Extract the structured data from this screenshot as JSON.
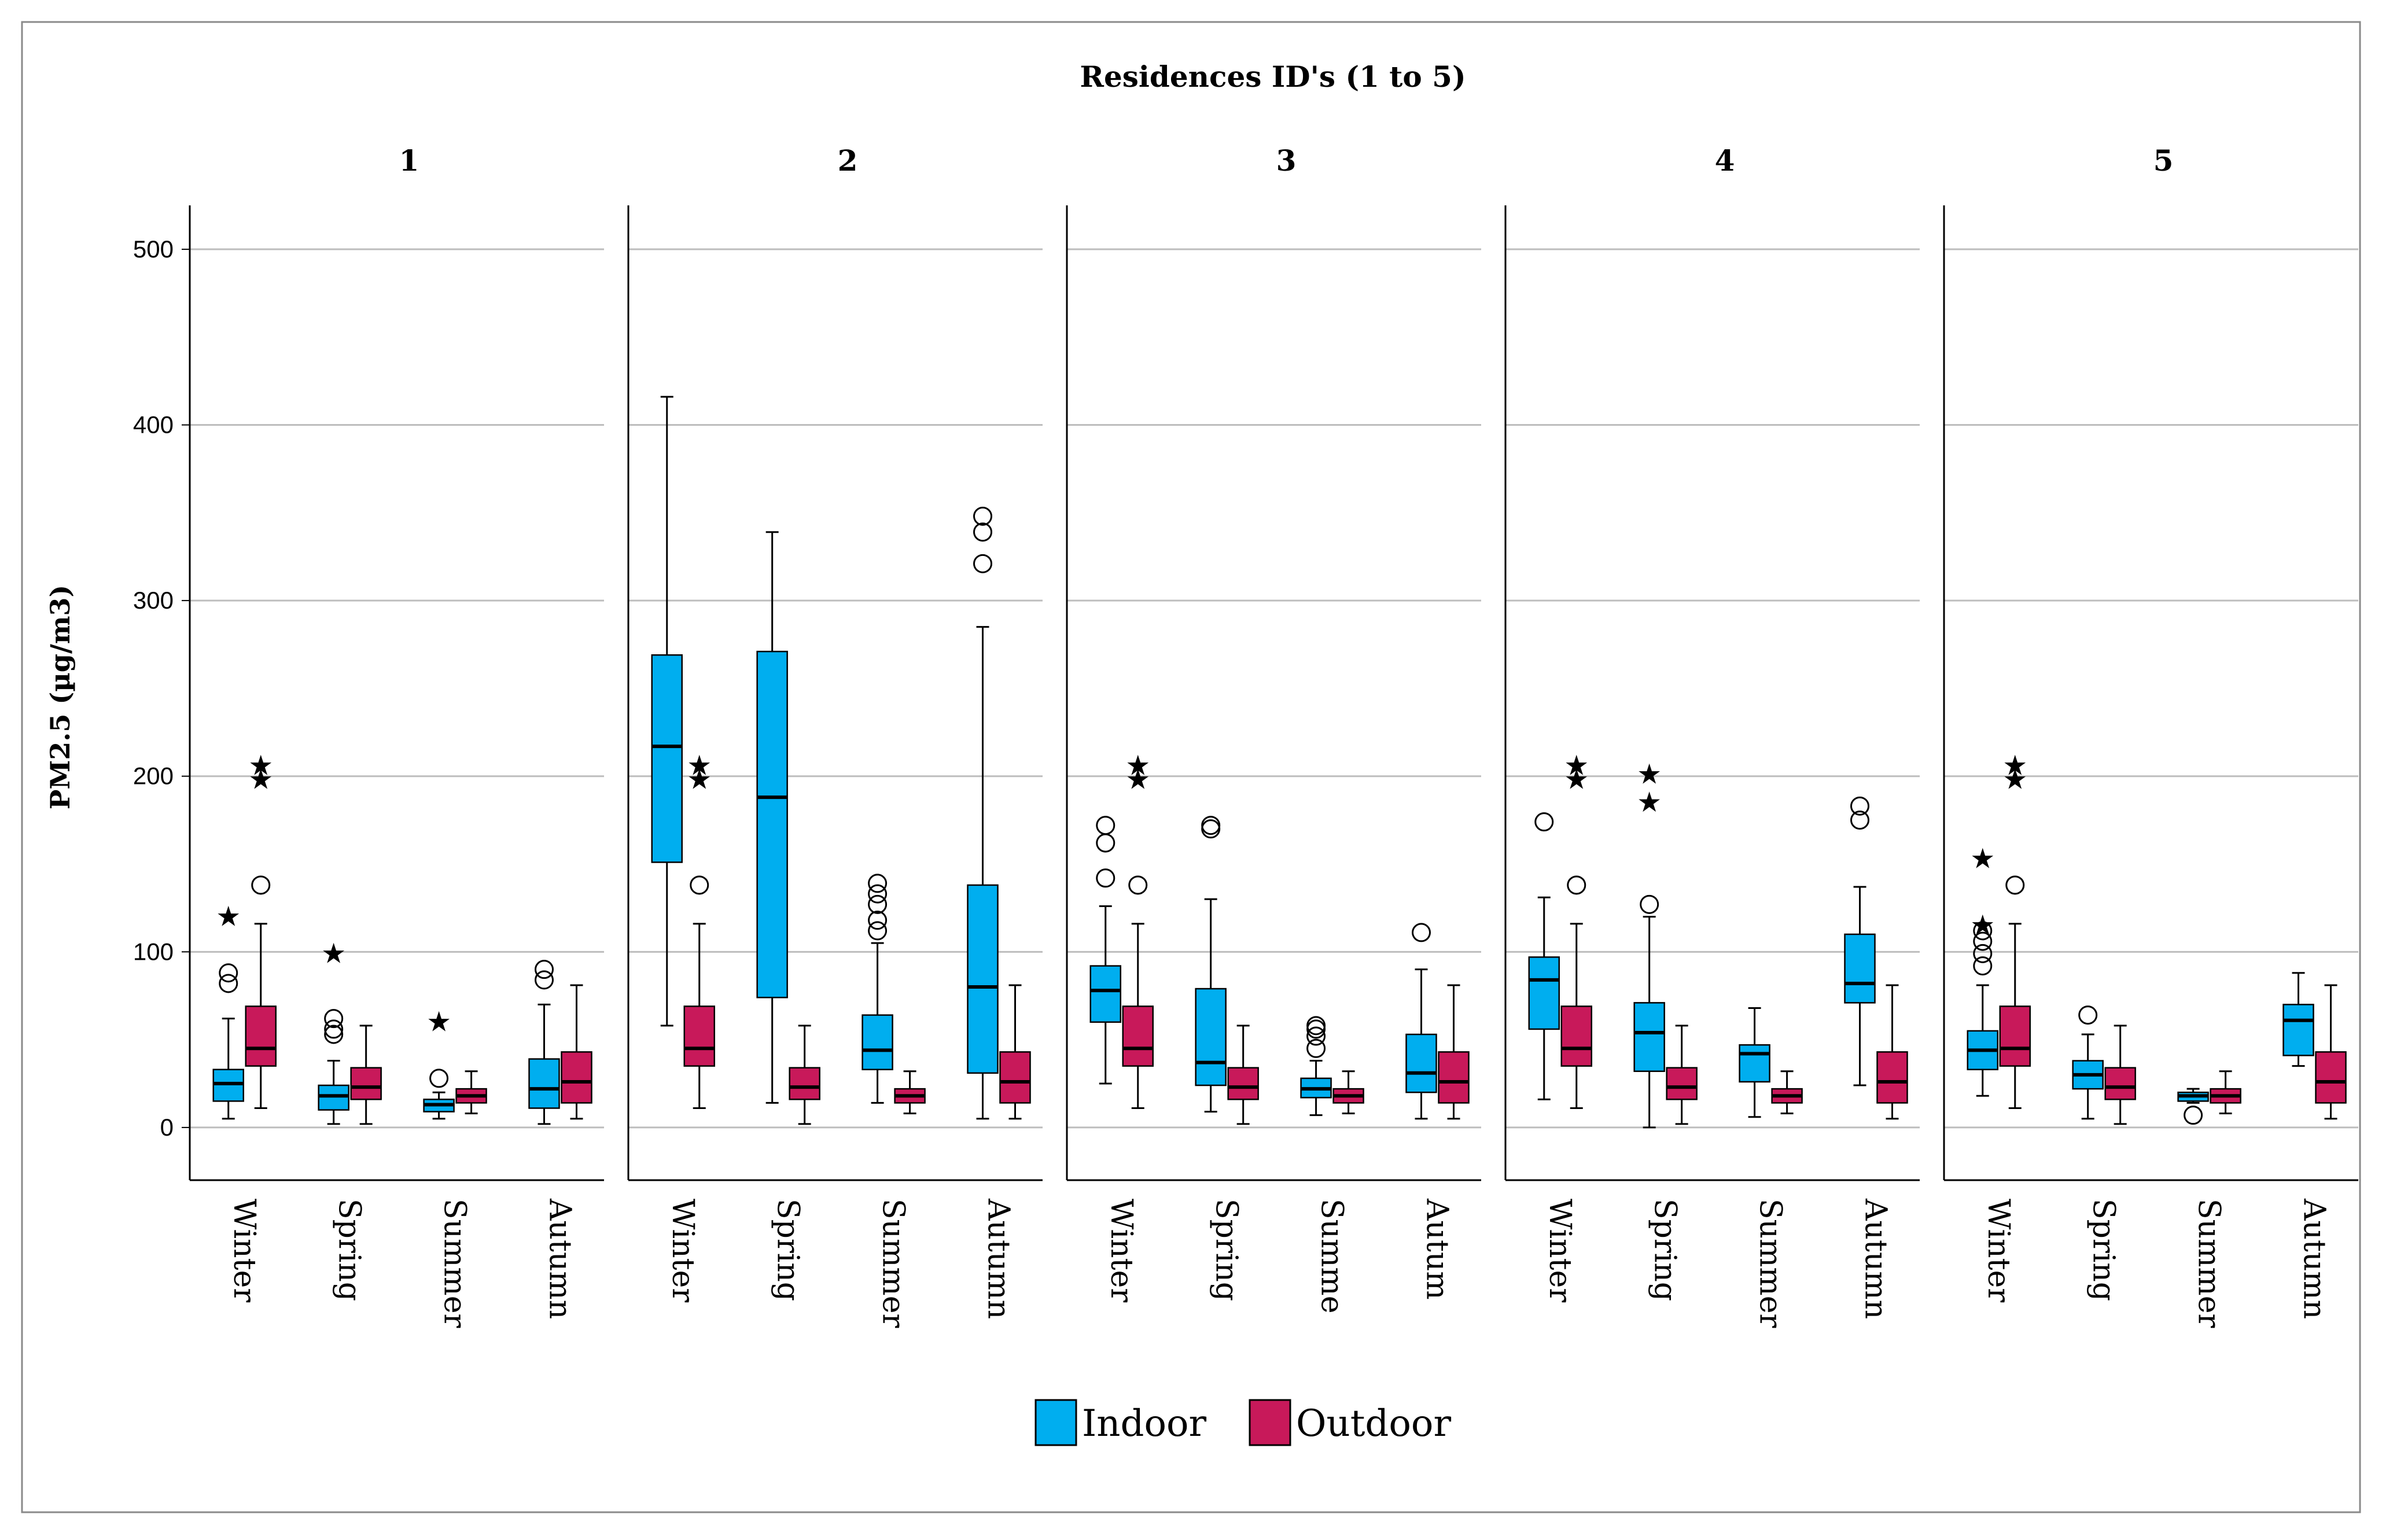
{
  "chart_data": {
    "type": "boxplot",
    "title": "Residences ID's (1 to 5)",
    "ylabel": "PM2.5 (µg/m3)",
    "xlabel": "",
    "ylim": [
      -30,
      525
    ],
    "yticks": [
      0,
      100,
      200,
      300,
      400,
      500
    ],
    "grid": true,
    "legend_position": "bottom",
    "categories": [
      "Winter",
      "Spring",
      "Summer",
      "Autumn"
    ],
    "category_labels": [
      [
        "Winter",
        "Spring",
        "Summer",
        "Autumn"
      ],
      [
        "Winter",
        "Spring",
        "Summer",
        "Autumn"
      ],
      [
        "Winter",
        "Spring",
        "Summe",
        "Autum"
      ],
      [
        "Winter",
        "Spring",
        "Summer",
        "Autumn"
      ],
      [
        "Winter",
        "Spring",
        "Summer",
        "Autumn"
      ]
    ],
    "series": [
      {
        "name": "Indoor",
        "color": "#00aeef"
      },
      {
        "name": "Outdoor",
        "color": "#c8195a"
      }
    ],
    "panels": [
      {
        "label": "1",
        "boxes": [
          [
            {
              "whislo": 5,
              "q1": 15,
              "med": 25,
              "q3": 33,
              "whishi": 62,
              "outliers": [
                82,
                88
              ],
              "extremes": [
                122
              ]
            },
            {
              "whislo": 11,
              "q1": 35,
              "med": 45,
              "q3": 69,
              "whishi": 116,
              "outliers": [
                138
              ],
              "extremes": [
                200,
                208
              ]
            }
          ],
          [
            {
              "whislo": 2,
              "q1": 10,
              "med": 18,
              "q3": 24,
              "whishi": 38,
              "outliers": [
                53,
                56,
                62
              ],
              "extremes": [
                101
              ]
            },
            {
              "whislo": 2,
              "q1": 16,
              "med": 23,
              "q3": 34,
              "whishi": 58,
              "outliers": [],
              "extremes": []
            }
          ],
          [
            {
              "whislo": 5,
              "q1": 9,
              "med": 13,
              "q3": 16,
              "whishi": 20,
              "outliers": [
                28
              ],
              "extremes": [
                62
              ]
            },
            {
              "whislo": 8,
              "q1": 14,
              "med": 18,
              "q3": 22,
              "whishi": 32,
              "outliers": [],
              "extremes": []
            }
          ],
          [
            {
              "whislo": 2,
              "q1": 11,
              "med": 22,
              "q3": 39,
              "whishi": 70,
              "outliers": [
                84,
                90
              ],
              "extremes": []
            },
            {
              "whislo": 5,
              "q1": 14,
              "med": 26,
              "q3": 43,
              "whishi": 81,
              "outliers": [],
              "extremes": []
            }
          ]
        ]
      },
      {
        "label": "2",
        "boxes": [
          [
            {
              "whislo": 58,
              "q1": 151,
              "med": 217,
              "q3": 269,
              "whishi": 416,
              "outliers": [],
              "extremes": []
            },
            {
              "whislo": 11,
              "q1": 35,
              "med": 45,
              "q3": 69,
              "whishi": 116,
              "outliers": [
                138
              ],
              "extremes": [
                200,
                208
              ]
            }
          ],
          [
            {
              "whislo": 14,
              "q1": 74,
              "med": 188,
              "q3": 271,
              "whishi": 339,
              "outliers": [],
              "extremes": []
            },
            {
              "whislo": 2,
              "q1": 16,
              "med": 23,
              "q3": 34,
              "whishi": 58,
              "outliers": [],
              "extremes": []
            }
          ],
          [
            {
              "whislo": 14,
              "q1": 33,
              "med": 44,
              "q3": 64,
              "whishi": 105,
              "outliers": [
                112,
                118,
                127,
                133,
                139
              ],
              "extremes": []
            },
            {
              "whislo": 8,
              "q1": 14,
              "med": 18,
              "q3": 22,
              "whishi": 32,
              "outliers": [],
              "extremes": []
            }
          ],
          [
            {
              "whislo": 5,
              "q1": 31,
              "med": 80,
              "q3": 138,
              "whishi": 285,
              "outliers": [
                321,
                339,
                348
              ],
              "extremes": []
            },
            {
              "whislo": 5,
              "q1": 14,
              "med": 26,
              "q3": 43,
              "whishi": 81,
              "outliers": [],
              "extremes": []
            }
          ]
        ]
      },
      {
        "label": "3",
        "boxes": [
          [
            {
              "whislo": 25,
              "q1": 60,
              "med": 78,
              "q3": 92,
              "whishi": 126,
              "outliers": [
                142,
                162,
                172
              ],
              "extremes": []
            },
            {
              "whislo": 11,
              "q1": 35,
              "med": 45,
              "q3": 69,
              "whishi": 116,
              "outliers": [
                138
              ],
              "extremes": [
                200,
                208
              ]
            }
          ],
          [
            {
              "whislo": 9,
              "q1": 24,
              "med": 37,
              "q3": 79,
              "whishi": 130,
              "outliers": [
                170,
                172
              ],
              "extremes": []
            },
            {
              "whislo": 2,
              "q1": 16,
              "med": 23,
              "q3": 34,
              "whishi": 58,
              "outliers": [],
              "extremes": []
            }
          ],
          [
            {
              "whislo": 7,
              "q1": 17,
              "med": 22,
              "q3": 28,
              "whishi": 38,
              "outliers": [
                45,
                52,
                56,
                58
              ],
              "extremes": []
            },
            {
              "whislo": 8,
              "q1": 14,
              "med": 18,
              "q3": 22,
              "whishi": 32,
              "outliers": [],
              "extremes": []
            }
          ],
          [
            {
              "whislo": 5,
              "q1": 20,
              "med": 31,
              "q3": 53,
              "whishi": 90,
              "outliers": [
                111
              ],
              "extremes": []
            },
            {
              "whislo": 5,
              "q1": 14,
              "med": 26,
              "q3": 43,
              "whishi": 81,
              "outliers": [],
              "extremes": []
            }
          ]
        ]
      },
      {
        "label": "4",
        "boxes": [
          [
            {
              "whislo": 16,
              "q1": 56,
              "med": 84,
              "q3": 97,
              "whishi": 131,
              "outliers": [
                174
              ],
              "extremes": []
            },
            {
              "whislo": 11,
              "q1": 35,
              "med": 45,
              "q3": 69,
              "whishi": 116,
              "outliers": [
                138
              ],
              "extremes": [
                200,
                208
              ]
            }
          ],
          [
            {
              "whislo": 0,
              "q1": 32,
              "med": 54,
              "q3": 71,
              "whishi": 120,
              "outliers": [
                127
              ],
              "extremes": [
                187,
                203
              ]
            },
            {
              "whislo": 2,
              "q1": 16,
              "med": 23,
              "q3": 34,
              "whishi": 58,
              "outliers": [],
              "extremes": []
            }
          ],
          [
            {
              "whislo": 6,
              "q1": 26,
              "med": 42,
              "q3": 47,
              "whishi": 68,
              "outliers": [],
              "extremes": []
            },
            {
              "whislo": 8,
              "q1": 14,
              "med": 18,
              "q3": 22,
              "whishi": 32,
              "outliers": [],
              "extremes": []
            }
          ],
          [
            {
              "whislo": 24,
              "q1": 71,
              "med": 82,
              "q3": 110,
              "whishi": 137,
              "outliers": [
                175,
                183
              ],
              "extremes": []
            },
            {
              "whislo": 5,
              "q1": 14,
              "med": 26,
              "q3": 43,
              "whishi": 81,
              "outliers": [],
              "extremes": []
            }
          ]
        ]
      },
      {
        "label": "5",
        "boxes": [
          [
            {
              "whislo": 18,
              "q1": 33,
              "med": 44,
              "q3": 55,
              "whishi": 81,
              "outliers": [
                92,
                99,
                106,
                112
              ],
              "extremes": [
                117,
                155
              ]
            },
            {
              "whislo": 11,
              "q1": 35,
              "med": 45,
              "q3": 69,
              "whishi": 116,
              "outliers": [
                138
              ],
              "extremes": [
                200,
                208
              ]
            }
          ],
          [
            {
              "whislo": 5,
              "q1": 22,
              "med": 30,
              "q3": 38,
              "whishi": 53,
              "outliers": [
                64
              ],
              "extremes": []
            },
            {
              "whislo": 2,
              "q1": 16,
              "med": 23,
              "q3": 34,
              "whishi": 58,
              "outliers": [],
              "extremes": []
            }
          ],
          [
            {
              "whislo": 14,
              "q1": 15,
              "med": 18,
              "q3": 20,
              "whishi": 22,
              "outliers": [
                7
              ],
              "extremes": []
            },
            {
              "whislo": 8,
              "q1": 14,
              "med": 18,
              "q3": 22,
              "whishi": 32,
              "outliers": [],
              "extremes": []
            }
          ],
          [
            {
              "whislo": 35,
              "q1": 41,
              "med": 61,
              "q3": 70,
              "whishi": 88,
              "outliers": [],
              "extremes": []
            },
            {
              "whislo": 5,
              "q1": 14,
              "med": 26,
              "q3": 43,
              "whishi": 81,
              "outliers": [],
              "extremes": []
            }
          ]
        ]
      }
    ]
  }
}
